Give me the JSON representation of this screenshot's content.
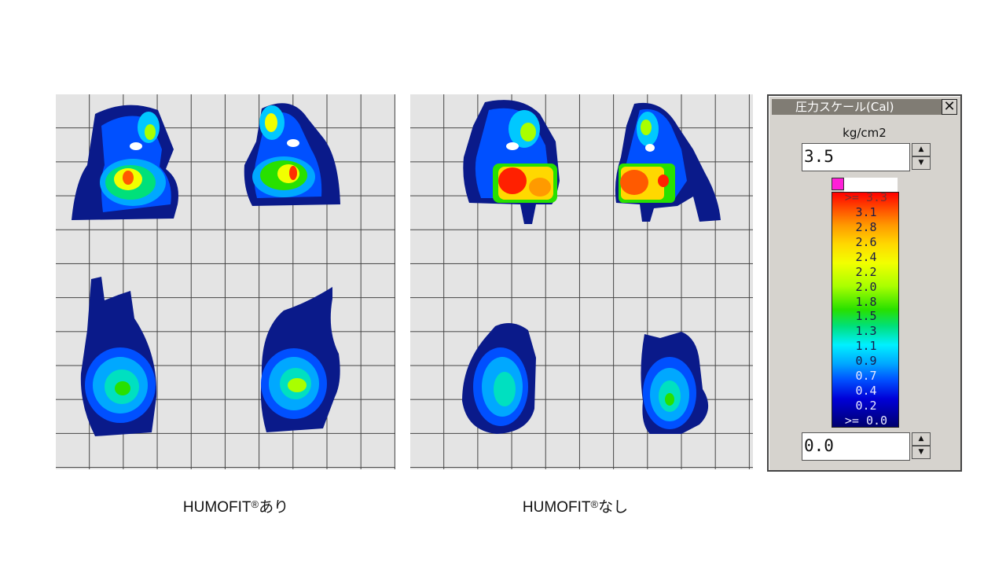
{
  "captions": {
    "left": "HUMOFIT®あり",
    "right": "HUMOFIT®なし"
  },
  "scale_window": {
    "title": "圧力スケール(Cal)",
    "close_label": "✕",
    "unit": "kg/cm2",
    "max_value": "3.5",
    "min_value": "0.0",
    "spin_up": "▲",
    "spin_down": "▼",
    "ticks": [
      ">= 3.3",
      "3.1",
      "2.8",
      "2.6",
      "2.4",
      "2.2",
      "2.0",
      "1.8",
      "1.5",
      "1.3",
      "1.1",
      "0.9",
      "0.7",
      "0.4",
      "0.2",
      ">= 0.0"
    ],
    "max_marker_color": "#ff1fd8"
  },
  "colors": {
    "grid_background": "#e4e4e4",
    "grid_line": "#444444",
    "pressure_low": "#0a1a8a",
    "pressure_high": "#ff0000"
  }
}
